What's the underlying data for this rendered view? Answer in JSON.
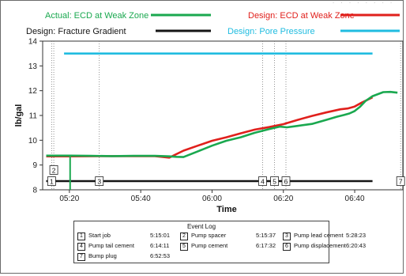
{
  "chart_data": {
    "type": "line",
    "title": "",
    "xlabel": "Time",
    "ylabel": "lb/gal",
    "x_ticks": [
      "05:20",
      "05:40",
      "06:00",
      "06:20",
      "06:40"
    ],
    "x_tick_minutes": [
      320,
      340,
      360,
      380,
      400
    ],
    "xlim_minutes": [
      312.5,
      413.5
    ],
    "ylim": [
      8,
      14
    ],
    "y_ticks": [
      "8",
      "9",
      "10",
      "11",
      "12",
      "13",
      "14"
    ],
    "legend_position": "top",
    "series": [
      {
        "name": "Actual: ECD at Weak Zone",
        "color": "#1aa84f",
        "x_minutes": [
          313.5,
          318.5,
          320.2,
          326,
          332,
          338,
          344,
          348,
          350,
          352,
          356,
          360,
          364,
          368,
          372,
          376,
          379,
          381,
          384,
          388,
          392,
          395,
          397,
          398.5,
          400,
          401.5,
          403,
          405,
          408,
          410,
          412
        ],
        "values": [
          9.38,
          9.38,
          9.38,
          9.37,
          9.36,
          9.37,
          9.37,
          9.35,
          9.33,
          9.32,
          9.55,
          9.78,
          9.98,
          10.12,
          10.3,
          10.45,
          10.55,
          10.52,
          10.58,
          10.66,
          10.82,
          10.95,
          11.02,
          11.08,
          11.18,
          11.35,
          11.58,
          11.78,
          11.94,
          11.95,
          11.92
        ]
      },
      {
        "name": "Design: ECD at Weak Zone",
        "color": "#e0201c",
        "x_minutes": [
          313.5,
          320,
          332,
          344,
          348,
          352,
          356,
          360,
          364,
          368,
          372,
          376,
          380,
          384,
          388,
          392,
          396,
          398,
          400,
          402,
          405
        ],
        "values": [
          9.35,
          9.35,
          9.36,
          9.36,
          9.3,
          9.58,
          9.78,
          9.98,
          10.12,
          10.28,
          10.43,
          10.53,
          10.65,
          10.82,
          10.98,
          11.12,
          11.25,
          11.28,
          11.36,
          11.52,
          11.73
        ]
      },
      {
        "name": "Design: Fracture Gradient",
        "color": "#151515",
        "x_minutes": [
          313.5,
          405
        ],
        "values": [
          8.35,
          8.35
        ]
      },
      {
        "name": "Design: Pore Pressure",
        "color": "#20bce0",
        "x_minutes": [
          318.5,
          405
        ],
        "values": [
          13.5,
          13.5
        ]
      }
    ],
    "markers": [
      {
        "number": "1",
        "minute": 315.02,
        "y": 8.35
      },
      {
        "number": "2",
        "minute": 315.62,
        "y": 8.8
      },
      {
        "number": "3",
        "minute": 328.38,
        "y": 8.35
      },
      {
        "number": "4",
        "minute": 374.18,
        "y": 8.35
      },
      {
        "number": "5",
        "minute": 377.53,
        "y": 8.35
      },
      {
        "number": "6",
        "minute": 380.72,
        "y": 8.35
      },
      {
        "number": "7",
        "minute": 412.88,
        "y": 8.35
      }
    ],
    "event_log": {
      "title": "Event Log",
      "events": [
        {
          "num": "1",
          "label": "Start job",
          "time": "5:15:01"
        },
        {
          "num": "2",
          "label": "Pump spacer",
          "time": "5:15:37"
        },
        {
          "num": "3",
          "label": "Pump lead cement",
          "time": "5:28:23"
        },
        {
          "num": "4",
          "label": "Pump tail cement",
          "time": "6:14:11"
        },
        {
          "num": "5",
          "label": "Pump cement",
          "time": "6:17:32"
        },
        {
          "num": "6",
          "label": "Pump displacement",
          "time": "6:20:43"
        },
        {
          "num": "7",
          "label": "Bump plug",
          "time": "6:52:53"
        }
      ]
    }
  }
}
